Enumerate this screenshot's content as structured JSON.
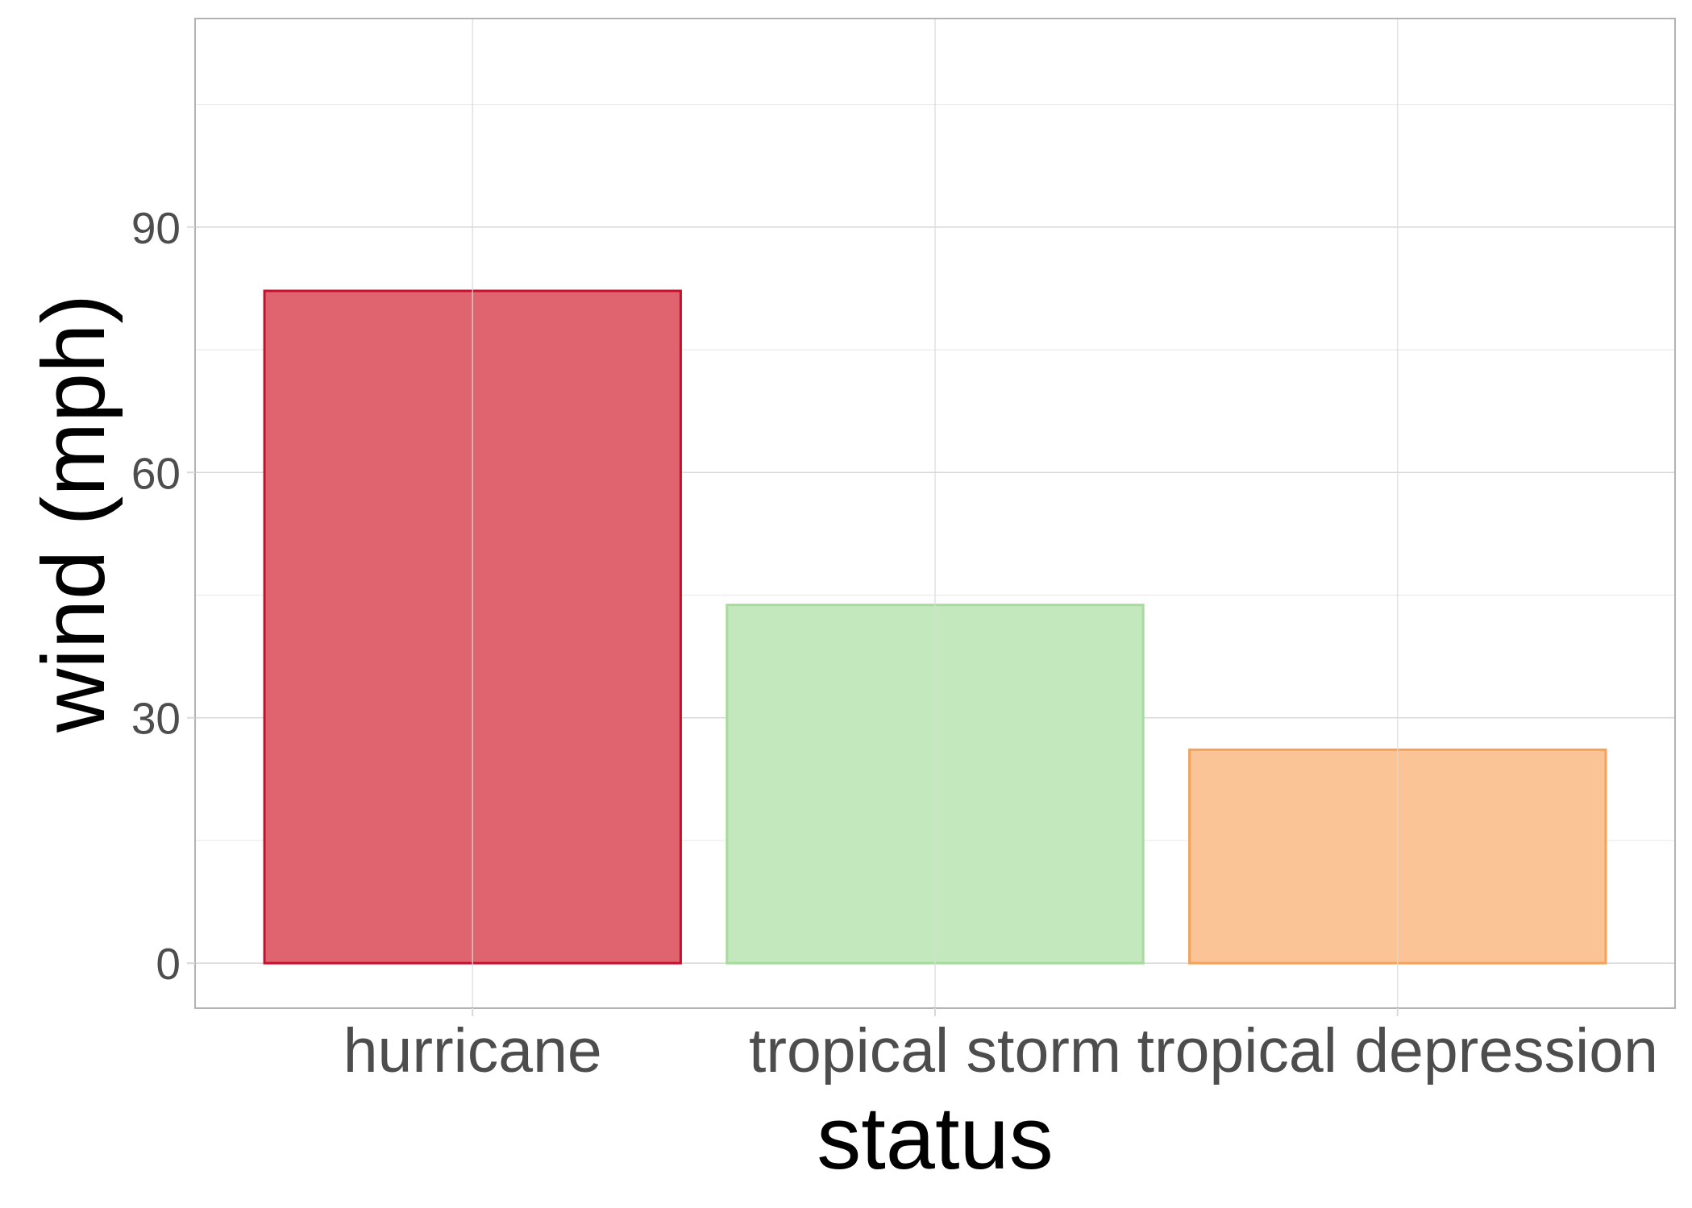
{
  "chart_data": {
    "type": "bar",
    "title": "",
    "xlabel": "status",
    "ylabel": "wind (mph)",
    "categories": [
      "hurricane",
      "tropical storm",
      "tropical depression"
    ],
    "values": [
      82.2,
      43.8,
      26.1
    ],
    "ylim": [
      -5.5,
      115.5
    ],
    "yticks": [
      0,
      30,
      60,
      90
    ],
    "y_minor_ticks": [
      15,
      45,
      75,
      105
    ],
    "grid": true,
    "legend": "none",
    "colors": {
      "fills": [
        "#E0646F",
        "#C4E8BE",
        "#FBC496"
      ],
      "strokes": [
        "#C8102E",
        "#A6DB9C",
        "#F4A15A"
      ],
      "grid_major": "#D9D9D9",
      "grid_minor": "#EBEBEB",
      "panel_border": "#B3B3B3",
      "tick_label": "#4D4D4D",
      "axis_title": "#000000"
    }
  }
}
